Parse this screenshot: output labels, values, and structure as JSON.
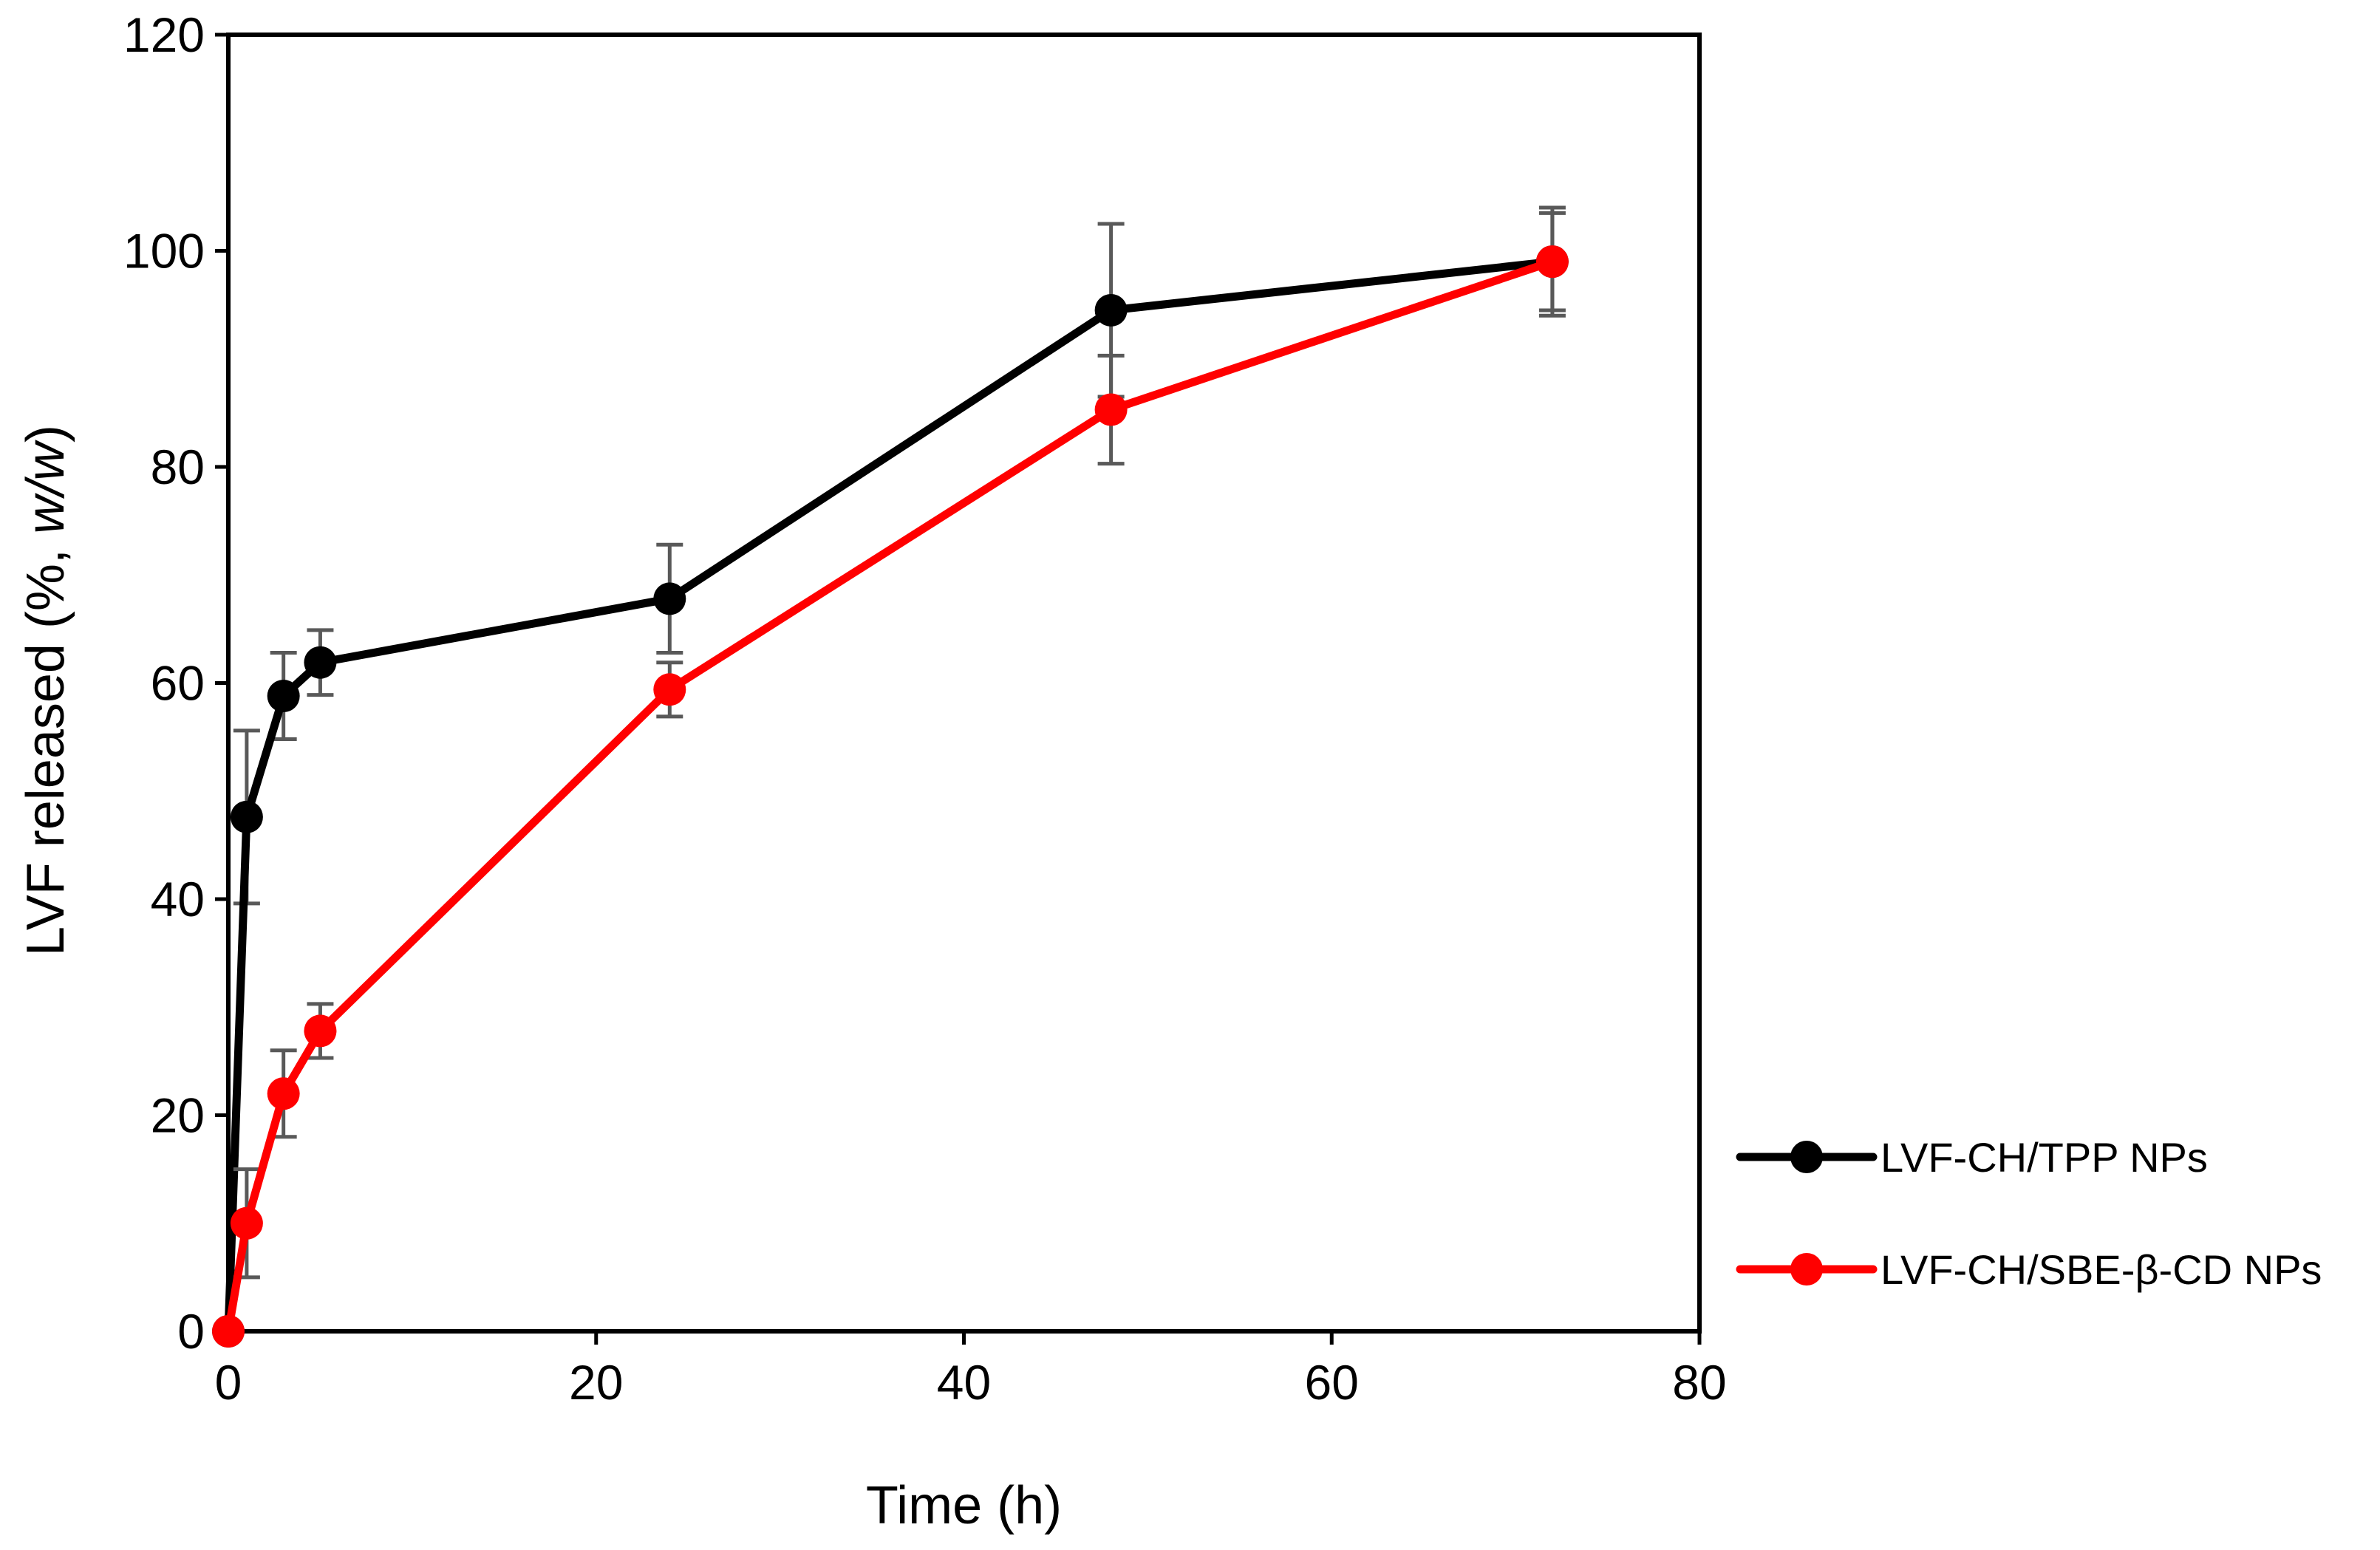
{
  "chart_data": {
    "type": "line",
    "title": "",
    "xlabel": "Time (h)",
    "ylabel": {
      "main": "LVF released (%, ",
      "italic": "w/w",
      "close": ")"
    },
    "xlim": [
      0,
      80
    ],
    "ylim": [
      0,
      120
    ],
    "x_ticks": [
      "0",
      "20",
      "40",
      "60",
      "80"
    ],
    "y_ticks": [
      "0",
      "20",
      "40",
      "60",
      "80",
      "100",
      "120"
    ],
    "grid": false,
    "legend_position": "right",
    "error_bar_color": "#595959",
    "series": [
      {
        "name": "LVF-CH/TPP NPs",
        "color": "#000000",
        "x": [
          0,
          1,
          3,
          5,
          24,
          48,
          72
        ],
        "values": [
          0,
          47.6,
          58.8,
          61.9,
          67.8,
          94.5,
          99.0
        ],
        "errors": [
          0,
          8.0,
          4.0,
          3.0,
          5.0,
          8.0,
          5.0
        ]
      },
      {
        "name": "LVF-CH/SBE-β-CD NPs",
        "color": "#ff0000",
        "x": [
          0,
          1,
          3,
          5,
          24,
          48,
          72
        ],
        "values": [
          0,
          10.0,
          22.0,
          27.8,
          59.4,
          85.3,
          99.0
        ],
        "errors": [
          0,
          5.0,
          4.0,
          2.5,
          2.5,
          5.0,
          4.5
        ]
      }
    ]
  }
}
